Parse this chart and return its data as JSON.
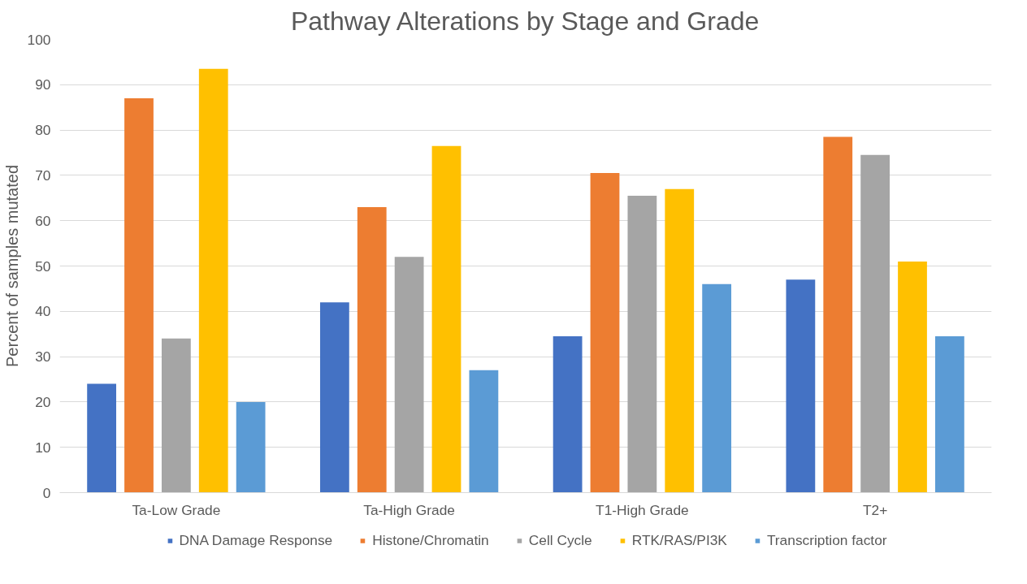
{
  "chart_data": {
    "type": "bar",
    "title": "Pathway Alterations by Stage and Grade",
    "ylabel": "Percent of samples mutated",
    "categories": [
      "Ta-Low Grade",
      "Ta-High Grade",
      "T1-High Grade",
      "T2+"
    ],
    "series": [
      {
        "name": "DNA Damage Response",
        "color": "#4472c4",
        "values": [
          24,
          42,
          34.5,
          47
        ]
      },
      {
        "name": "Histone/Chromatin",
        "color": "#ed7d31",
        "values": [
          87,
          63,
          70.5,
          78.5
        ]
      },
      {
        "name": "Cell Cycle",
        "color": "#a5a5a5",
        "values": [
          34,
          52,
          65.5,
          74.5
        ]
      },
      {
        "name": "RTK/RAS/PI3K",
        "color": "#ffc000",
        "values": [
          93.5,
          76.5,
          67,
          51
        ]
      },
      {
        "name": "Transcription factor",
        "color": "#5b9bd5",
        "values": [
          20,
          27,
          46,
          34.5
        ]
      }
    ],
    "ylim": [
      0,
      100
    ],
    "yticks": [
      0,
      10,
      20,
      30,
      40,
      50,
      60,
      70,
      80,
      90,
      100
    ],
    "grid": "y",
    "legend": "bottom"
  }
}
